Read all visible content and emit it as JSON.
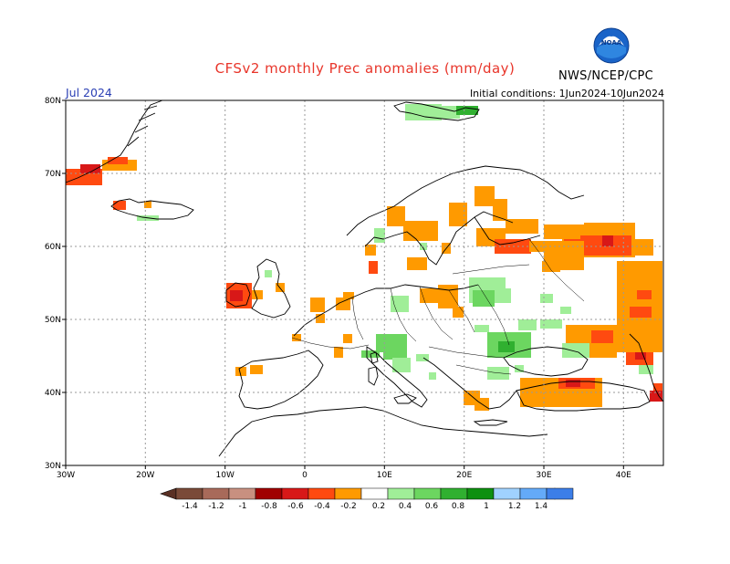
{
  "header": {
    "title": "CFSv2 monthly Prec anomalies (mm/day)",
    "month": "Jul 2024",
    "initial_conditions": "Initial conditions: 1Jun2024-10Jun2024",
    "agency": "NWS/NCEP/CPC",
    "logo_text": "NOAA"
  },
  "colors": {
    "title": "#e8352a",
    "month": "#2a3fb4",
    "text": "#000000",
    "grid": "#9a9a9a"
  },
  "axes": {
    "lat_labels": [
      "30N",
      "40N",
      "50N",
      "60N",
      "70N",
      "80N"
    ],
    "lon_labels": [
      "30W",
      "20W",
      "10W",
      "0",
      "10E",
      "20E",
      "30E",
      "40E"
    ],
    "lat_range": [
      30,
      80
    ],
    "lon_range": [
      -30,
      45
    ]
  },
  "colorbar": {
    "labels": [
      "-1.4",
      "-1.2",
      "-1",
      "-0.8",
      "-0.6",
      "-0.4",
      "-0.2",
      "0.2",
      "0.4",
      "0.6",
      "0.8",
      "1",
      "1.2",
      "1.4"
    ],
    "colors": [
      "#7a4a38",
      "#a86a5a",
      "#c89080",
      "#a00000",
      "#d81818",
      "#ff4a10",
      "#ff9a00",
      "#ffffff",
      "#a0ee98",
      "#6cd660",
      "#30b030",
      "#0e9010",
      "#a0d2ff",
      "#64aaf8",
      "#3c7ee8"
    ]
  },
  "map_data": {
    "anomaly_levels": {
      "orange": -0.3,
      "red_orange": -0.5,
      "red": -0.7,
      "dark_red": -0.9,
      "light_green": 0.3,
      "green": 0.5,
      "dark_green": 0.7
    },
    "level_colors": {
      "orange": "#ff9a00",
      "red_orange": "#ff4a10",
      "red": "#d81818",
      "dark_red": "#a00000",
      "light_green": "#a0ee98",
      "green": "#6cd660",
      "dark_green": "#30b030"
    }
  }
}
